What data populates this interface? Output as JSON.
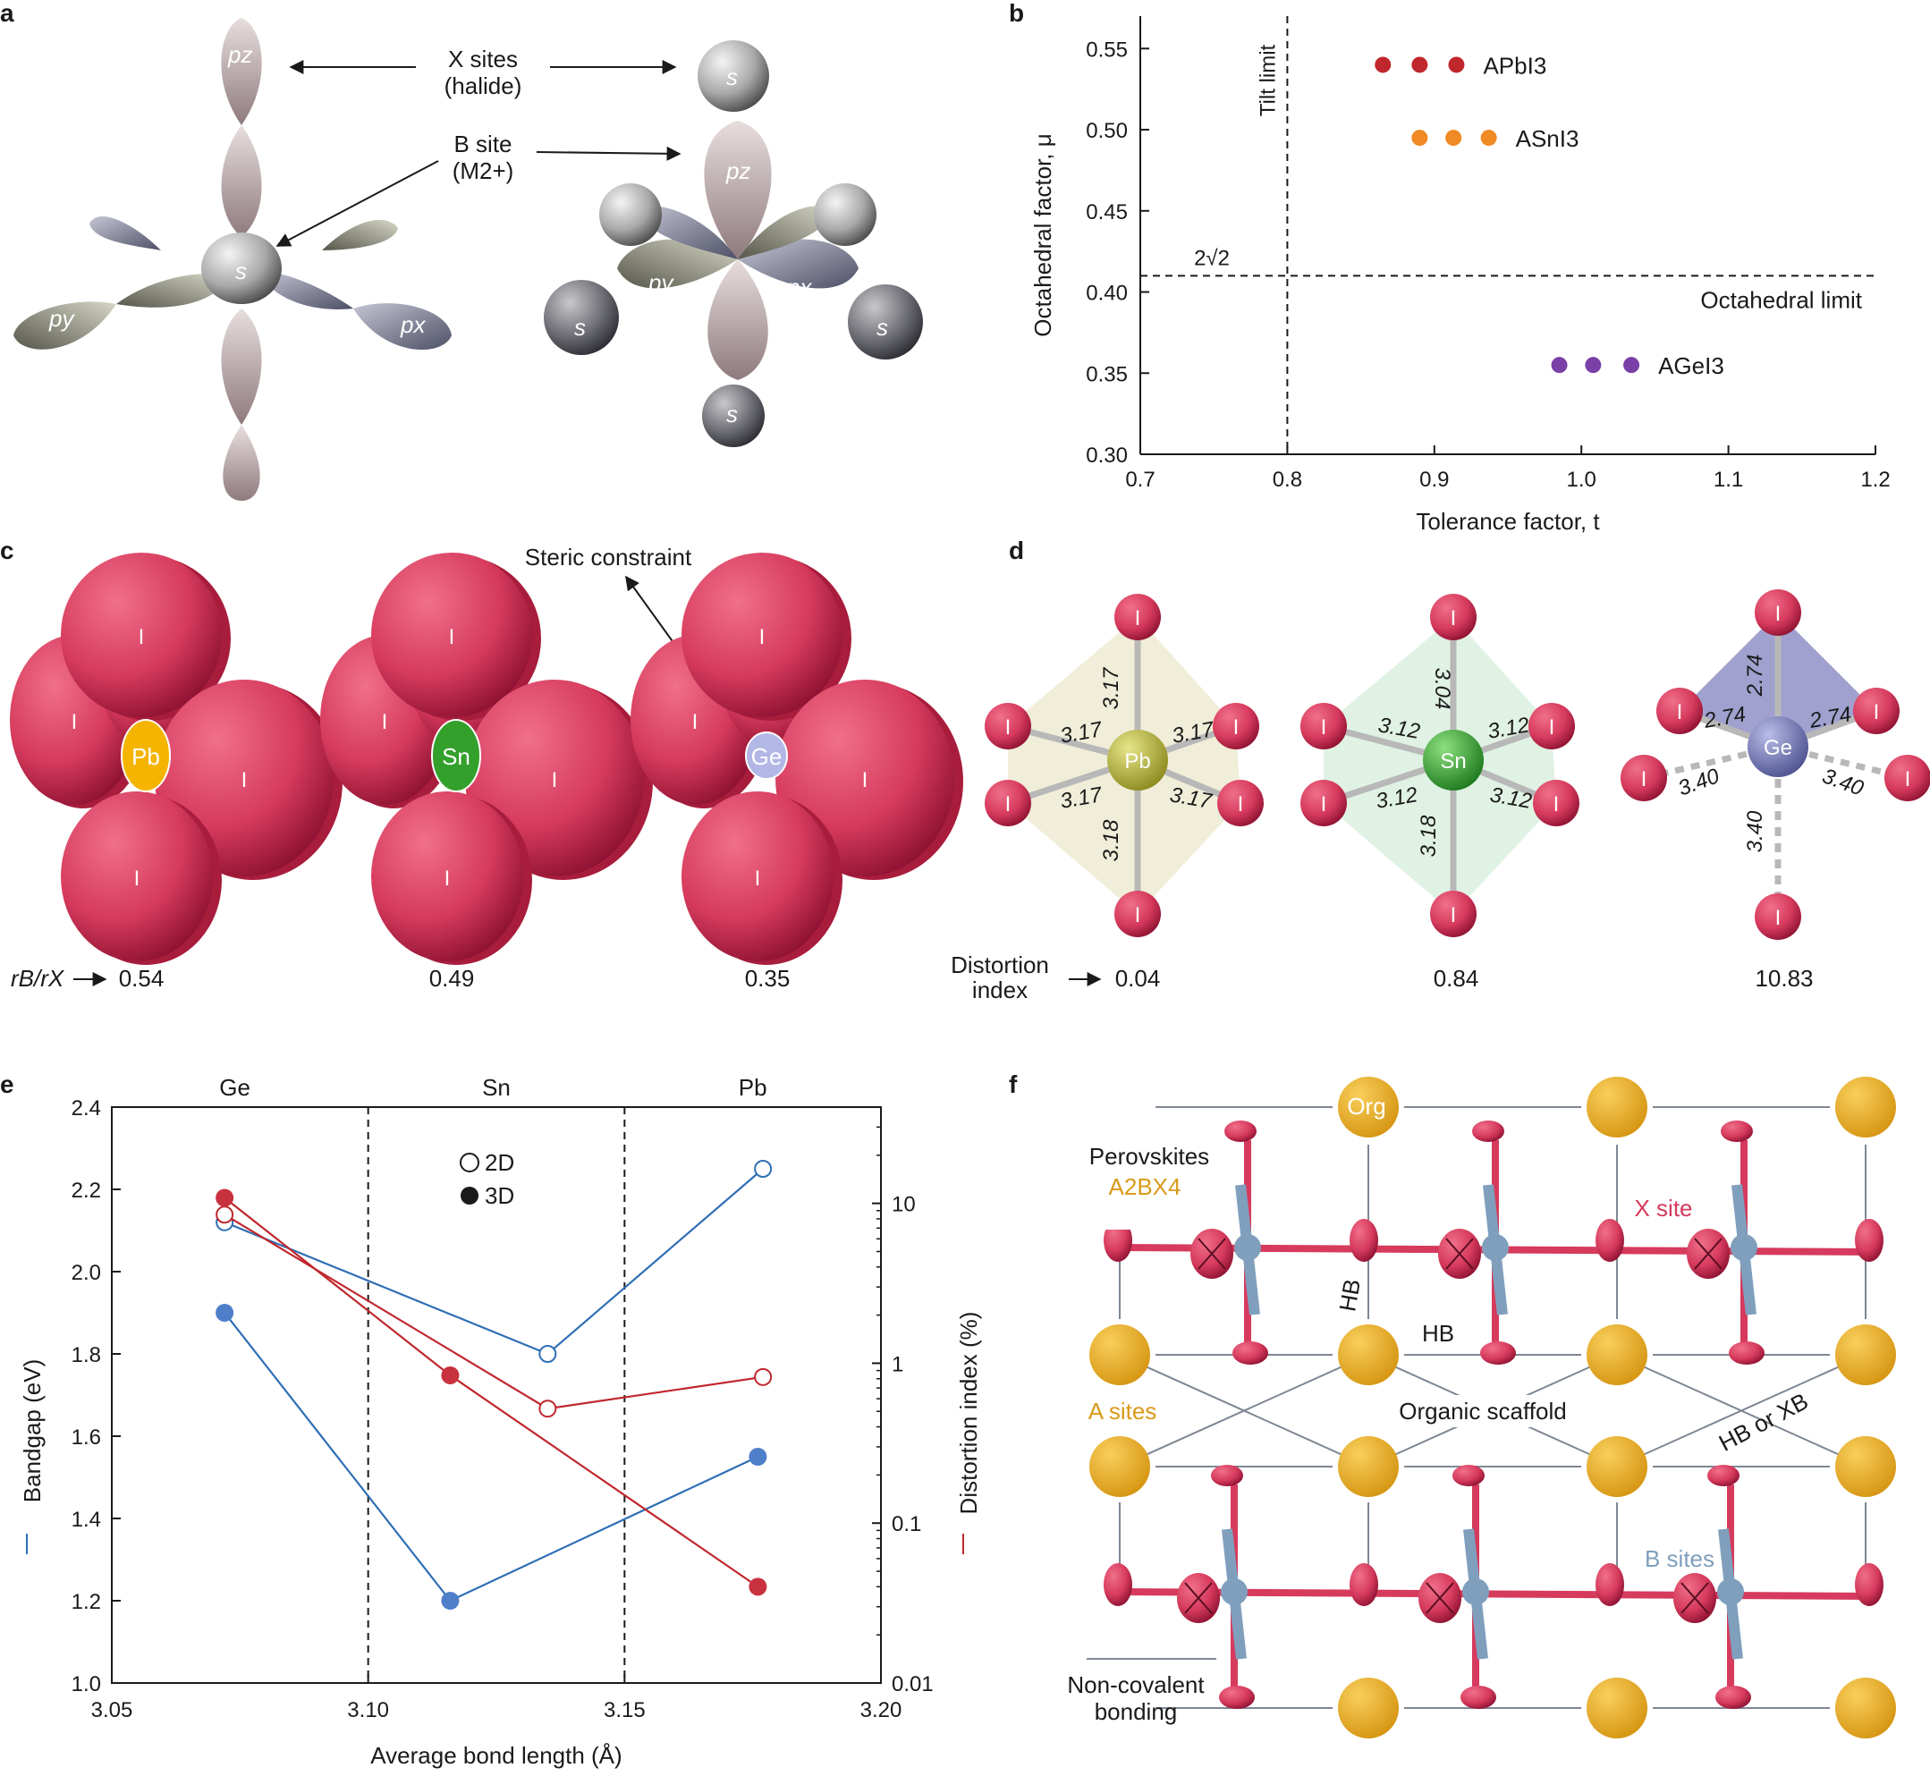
{
  "panels": {
    "a": {
      "label": "a",
      "x_sites": "X sites",
      "halide": "(halide)",
      "b_site": "B site",
      "b_site_charge": "(M2+)",
      "orbital_s": "s",
      "orbital_pz": "pz",
      "orbital_px": "px",
      "orbital_py": "py"
    },
    "b": {
      "label": "b"
    },
    "c": {
      "label": "c",
      "steric": "Steric constraint",
      "ratio_label": "rB/rX",
      "atoms": [
        "Pb",
        "Sn",
        "Ge"
      ],
      "iodide": "I",
      "ratios": [
        "0.54",
        "0.49",
        "0.35"
      ]
    },
    "d": {
      "label": "d",
      "distortion_label_1": "Distortion",
      "distortion_label_2": "index",
      "atoms": [
        "Pb",
        "Sn",
        "Ge"
      ],
      "iodide": "I",
      "values": [
        "0.04",
        "0.84",
        "10.83"
      ],
      "pb_bonds": [
        "3.17",
        "3.17",
        "3.17",
        "3.17",
        "3.17",
        "3.18"
      ],
      "sn_bonds": [
        "3.04",
        "3.12",
        "3.12",
        "3.12",
        "3.12",
        "3.18"
      ],
      "ge_bonds": [
        "2.74",
        "2.74",
        "2.74",
        "3.40",
        "3.40",
        "3.40"
      ]
    },
    "e": {
      "label": "e"
    },
    "f": {
      "label": "f",
      "perovskites": "Perovskites",
      "formula": "A2BX4",
      "org": "Org",
      "x_site": "X site",
      "hb": "HB",
      "hb2": "HB",
      "a_sites": "A sites",
      "organic_scaffold": "Organic scaffold",
      "hb_or_xb": "HB or XB",
      "b_sites": "B sites",
      "noncov_1": "Non-covalent",
      "noncov_2": "bonding"
    }
  },
  "colors": {
    "iodide": "#d63a5c",
    "pb": "#f5b400",
    "sn": "#33a02c",
    "ge": "#b3b7e6",
    "red_series": "#c0272d",
    "blue_series": "#2f6fb5",
    "orange_series": "#f08a24",
    "purple_series": "#7b3fa8",
    "a_site": "#e8a92a",
    "b_site": "#7f9fbd"
  },
  "chart_data": [
    {
      "id": "b",
      "type": "scatter",
      "xlabel": "Tolerance factor, t",
      "ylabel": "Octahedral factor, μ",
      "xlim": [
        0.7,
        1.2
      ],
      "ylim": [
        0.3,
        0.57
      ],
      "xticks": [
        "0.7",
        "0.8",
        "0.9",
        "1.0",
        "1.1",
        "1.2"
      ],
      "yticks": [
        "0.30",
        "0.35",
        "0.40",
        "0.45",
        "0.50",
        "0.55"
      ],
      "tilt_limit": {
        "x": 0.8,
        "label": "Tilt limit"
      },
      "octahedral_limit": {
        "y": 0.41,
        "label": "Octahedral limit",
        "annotation": "2√2"
      },
      "series": [
        {
          "name": "APbI3",
          "color": "#c0272d",
          "x": [
            0.865,
            0.89,
            0.915
          ],
          "y": [
            0.54,
            0.54,
            0.54
          ]
        },
        {
          "name": "ASnI3",
          "color": "#f08a24",
          "x": [
            0.89,
            0.913,
            0.937
          ],
          "y": [
            0.495,
            0.495,
            0.495
          ]
        },
        {
          "name": "AGeI3",
          "color": "#7b3fa8",
          "x": [
            0.985,
            1.008,
            1.034
          ],
          "y": [
            0.355,
            0.355,
            0.355
          ]
        }
      ]
    },
    {
      "id": "e",
      "type": "line",
      "xlabel": "Average bond length (Å)",
      "ylabel_left": "Bandgap (eV)",
      "ylabel_right": "Distortion index (%)",
      "xlim": [
        3.05,
        3.2
      ],
      "ylim_left": [
        1.0,
        2.4
      ],
      "ylim_right_log": [
        0.01,
        40
      ],
      "xticks": [
        "3.05",
        "3.10",
        "3.15",
        "3.20"
      ],
      "yticks_left": [
        "1.0",
        "1.2",
        "1.4",
        "1.6",
        "1.8",
        "2.0",
        "2.2",
        "2.4"
      ],
      "yticks_right": [
        "0.01",
        "0.1",
        "1",
        "10"
      ],
      "top_labels": [
        "Ge",
        "Sn",
        "Pb"
      ],
      "dividers": [
        3.1,
        3.15
      ],
      "legend": [
        "2D",
        "3D"
      ],
      "series": [
        {
          "name": "Bandgap 2D",
          "axis": "left",
          "filled": false,
          "x": [
            3.072,
            3.135,
            3.177
          ],
          "y": [
            2.12,
            1.8,
            2.25
          ]
        },
        {
          "name": "Bandgap 3D",
          "axis": "left",
          "filled": true,
          "x": [
            3.072,
            3.116,
            3.176
          ],
          "y": [
            1.9,
            1.2,
            1.55
          ]
        },
        {
          "name": "Distortion 2D",
          "axis": "right",
          "filled": false,
          "x": [
            3.072,
            3.135,
            3.177
          ],
          "y": [
            8.5,
            0.52,
            0.82
          ]
        },
        {
          "name": "Distortion 3D",
          "axis": "right",
          "filled": true,
          "x": [
            3.072,
            3.116,
            3.176
          ],
          "y": [
            10.83,
            0.84,
            0.04
          ]
        }
      ]
    }
  ]
}
